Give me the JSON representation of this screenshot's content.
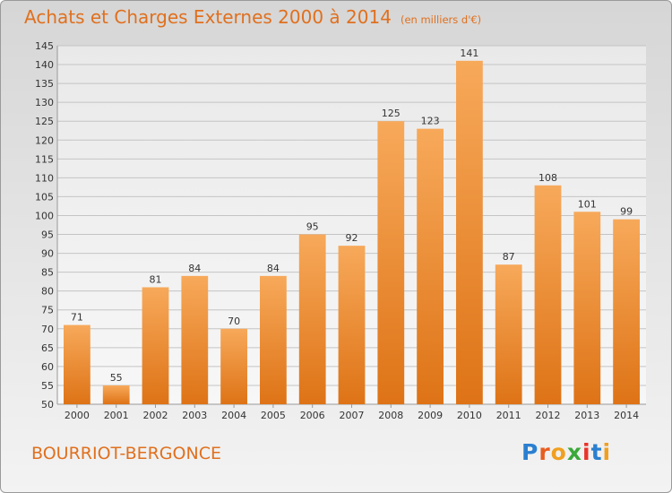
{
  "title": "Achats et Charges Externes 2000 à 2014",
  "subtitle": "(en milliers d'€)",
  "town": "BOURRIOT-BERGONCE",
  "logo": {
    "letters": [
      "P",
      "r",
      "o",
      "x",
      "i",
      "t",
      "i"
    ],
    "colors": [
      "#2b7fd0",
      "#e85d1f",
      "#f0a020",
      "#3aa83a",
      "#e8332a",
      "#2b7fd0",
      "#f0a020"
    ]
  },
  "colors": {
    "accent": "#e0701e",
    "bar_top": "#f7a95a",
    "bar_bottom": "#de7316"
  },
  "chart_data": {
    "type": "bar",
    "title": "Achats et Charges Externes 2000 à 2014",
    "subtitle": "(en milliers d'€)",
    "categories": [
      "2000",
      "2001",
      "2002",
      "2003",
      "2004",
      "2005",
      "2006",
      "2007",
      "2008",
      "2009",
      "2010",
      "2011",
      "2012",
      "2013",
      "2014"
    ],
    "values": [
      71,
      55,
      81,
      84,
      70,
      84,
      95,
      92,
      125,
      123,
      141,
      87,
      108,
      101,
      99
    ],
    "ylim": [
      50,
      145
    ],
    "yticks": [
      50,
      55,
      60,
      65,
      70,
      75,
      80,
      85,
      90,
      95,
      100,
      105,
      110,
      115,
      120,
      125,
      130,
      135,
      140,
      145
    ],
    "grid": true,
    "xlabel": "",
    "ylabel": ""
  }
}
